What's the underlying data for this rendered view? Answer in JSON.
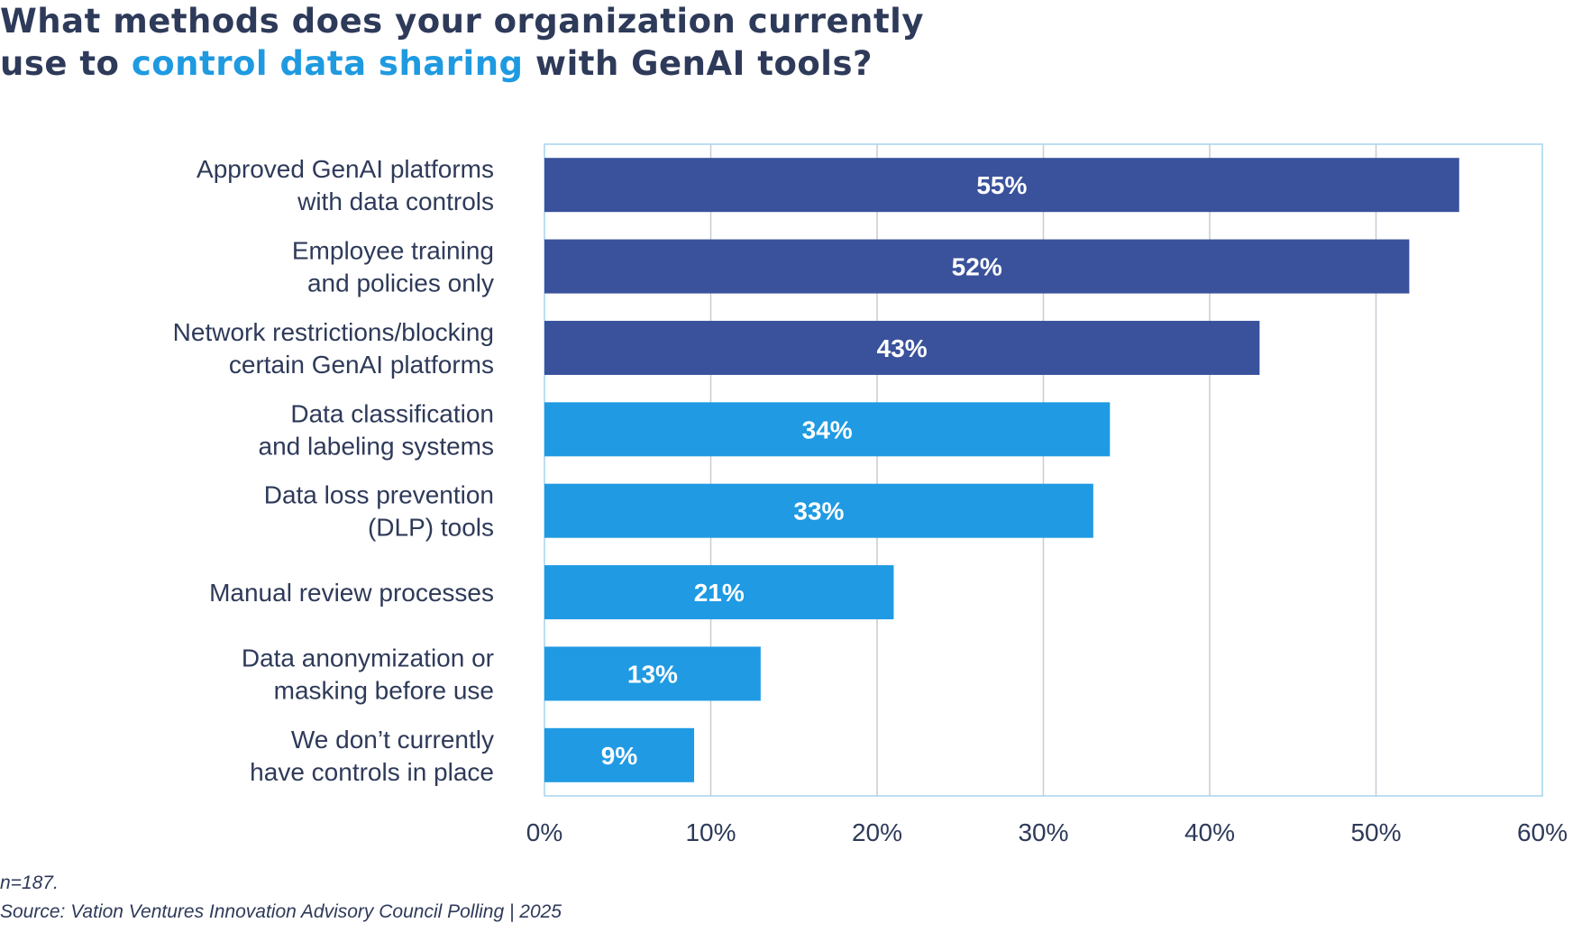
{
  "title": {
    "line1": "What methods does your organization currently",
    "line2_prefix": "use to ",
    "line2_highlight": "control data sharing",
    "line2_suffix": " with GenAI tools?"
  },
  "colors": {
    "dark_bar": "#3a529c",
    "light_bar": "#1f9ae3",
    "highlight": "#1f9ae0",
    "text": "#2e3a59",
    "grid": "#c9ccd3",
    "frame": "#a6d4ee"
  },
  "chart_data": {
    "type": "bar",
    "orientation": "horizontal",
    "title": "What methods does your organization currently use to control data sharing with GenAI tools?",
    "categories": [
      [
        "Approved GenAI platforms",
        "with data controls"
      ],
      [
        "Employee training",
        "and policies only"
      ],
      [
        "Network restrictions/blocking",
        "certain GenAI platforms"
      ],
      [
        "Data classification",
        "and labeling systems"
      ],
      [
        "Data loss prevention",
        "(DLP) tools"
      ],
      [
        "Manual review processes"
      ],
      [
        "Data anonymization or",
        "masking before use"
      ],
      [
        "We don’t currently",
        "have controls in place"
      ]
    ],
    "values": [
      55,
      52,
      43,
      34,
      33,
      21,
      13,
      9
    ],
    "value_labels": [
      "55%",
      "52%",
      "43%",
      "34%",
      "33%",
      "21%",
      "13%",
      "9%"
    ],
    "bar_color_group": [
      "dark",
      "dark",
      "dark",
      "light",
      "light",
      "light",
      "light",
      "light"
    ],
    "xlim": [
      0,
      60
    ],
    "xticks": [
      0,
      10,
      20,
      30,
      40,
      50,
      60
    ],
    "xtick_labels": [
      "0%",
      "10%",
      "20%",
      "30%",
      "40%",
      "50%",
      "60%"
    ],
    "xlabel": "",
    "ylabel": "",
    "grid": true,
    "legend": "none"
  },
  "footer": {
    "note": "n=187.",
    "source": "Source: Vation Ventures Innovation Advisory Council Polling | 2025"
  }
}
